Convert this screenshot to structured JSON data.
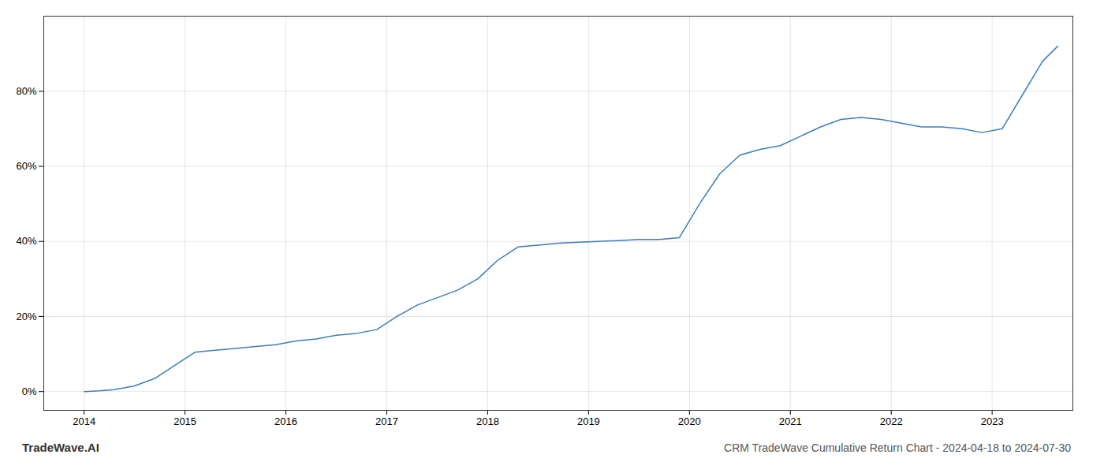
{
  "chart_data": {
    "type": "line",
    "title": "CRM TradeWave Cumulative Return Chart - 2024-04-18 to 2024-07-30",
    "annotations": [
      "TradeWave.AI"
    ],
    "x": [
      2014.0,
      2014.15,
      2014.3,
      2014.5,
      2014.7,
      2014.9,
      2015.1,
      2015.3,
      2015.5,
      2015.7,
      2015.9,
      2016.1,
      2016.3,
      2016.5,
      2016.7,
      2016.9,
      2017.1,
      2017.3,
      2017.5,
      2017.7,
      2017.9,
      2018.1,
      2018.3,
      2018.5,
      2018.7,
      2018.9,
      2019.1,
      2019.3,
      2019.5,
      2019.7,
      2019.9,
      2020.1,
      2020.3,
      2020.5,
      2020.7,
      2020.9,
      2021.1,
      2021.3,
      2021.5,
      2021.7,
      2021.9,
      2022.1,
      2022.3,
      2022.5,
      2022.7,
      2022.9,
      2023.1,
      2023.3,
      2023.5,
      2023.65
    ],
    "values": [
      0.0,
      0.2,
      0.5,
      1.5,
      3.5,
      7.0,
      10.5,
      11.0,
      11.5,
      12.0,
      12.5,
      13.5,
      14.0,
      15.0,
      15.5,
      16.5,
      20.0,
      23.0,
      25.0,
      27.0,
      30.0,
      35.0,
      38.5,
      39.0,
      39.5,
      39.8,
      40.0,
      40.2,
      40.5,
      40.5,
      41.0,
      50.0,
      58.0,
      63.0,
      64.5,
      65.5,
      68.0,
      70.5,
      72.5,
      73.0,
      72.5,
      71.5,
      70.5,
      70.5,
      70.0,
      69.0,
      70.0,
      79.0,
      88.0,
      92.0
    ],
    "color": "#3a7ebf",
    "xlim": [
      2013.6,
      2023.8
    ],
    "xticks": [
      2014,
      2015,
      2016,
      2017,
      2018,
      2019,
      2020,
      2021,
      2022,
      2023
    ],
    "ylim": [
      -5,
      100
    ],
    "yticks": [
      {
        "value": 0,
        "label": "0%"
      },
      {
        "value": 20,
        "label": "20%"
      },
      {
        "value": 40,
        "label": "40%"
      },
      {
        "value": 60,
        "label": "60%"
      },
      {
        "value": 80,
        "label": "80%"
      }
    ],
    "grid": true
  }
}
